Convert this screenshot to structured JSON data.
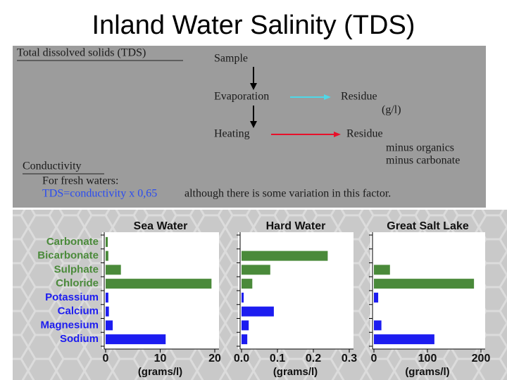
{
  "title": "Inland Water Salinity (TDS)",
  "diagram": {
    "heading": "Total dissolved solids (TDS)",
    "sample": "Sample",
    "evaporation": "Evaporation",
    "residue1": "Residue",
    "residue1_unit": "(g/l)",
    "heating": "Heating",
    "residue2": "Residue",
    "minus_organics": "minus organics",
    "minus_carbonate": "minus carbonate",
    "conductivity": "Conductivity",
    "fresh": "For fresh waters:",
    "formula": "TDS=conductivity x 0,65",
    "note": "although there is some variation in this factor."
  },
  "chart_data": [
    {
      "type": "bar",
      "title": "Sea Water",
      "xlabel": "(grams/l)",
      "categories": [
        "Carbonate",
        "Bicarbonate",
        "Sulphate",
        "Chloride",
        "Potassium",
        "Calcium",
        "Magnesium",
        "Sodium"
      ],
      "values": [
        0.4,
        0.5,
        2.8,
        19.4,
        0.5,
        0.6,
        1.3,
        11
      ],
      "colors": [
        "#4a8a3a",
        "#4a8a3a",
        "#4a8a3a",
        "#4a8a3a",
        "#1c1cf0",
        "#1c1cf0",
        "#1c1cf0",
        "#1c1cf0"
      ],
      "xlim": [
        0,
        20
      ],
      "xticks": [
        0,
        10,
        20
      ]
    },
    {
      "type": "bar",
      "title": "Hard Water",
      "xlabel": "(grams/l)",
      "values": [
        0,
        0.24,
        0.08,
        0.03,
        0.006,
        0.09,
        0.02,
        0.016
      ],
      "colors": [
        "#4a8a3a",
        "#4a8a3a",
        "#4a8a3a",
        "#4a8a3a",
        "#1c1cf0",
        "#1c1cf0",
        "#1c1cf0",
        "#1c1cf0"
      ],
      "xlim": [
        0,
        0.3
      ],
      "xticks": [
        {
          "value": 0,
          "label": "0.0"
        },
        0.1,
        0.2,
        0.3
      ]
    },
    {
      "type": "bar",
      "title": "Great Salt Lake",
      "xlabel": "(grams/l)",
      "values": [
        0,
        0,
        30,
        187,
        8,
        0,
        14,
        113
      ],
      "colors": [
        "#4a8a3a",
        "#4a8a3a",
        "#4a8a3a",
        "#4a8a3a",
        "#1c1cf0",
        "#1c1cf0",
        "#1c1cf0",
        "#1c1cf0"
      ],
      "xlim": [
        0,
        200
      ],
      "xticks": [
        0,
        100,
        200
      ]
    }
  ]
}
